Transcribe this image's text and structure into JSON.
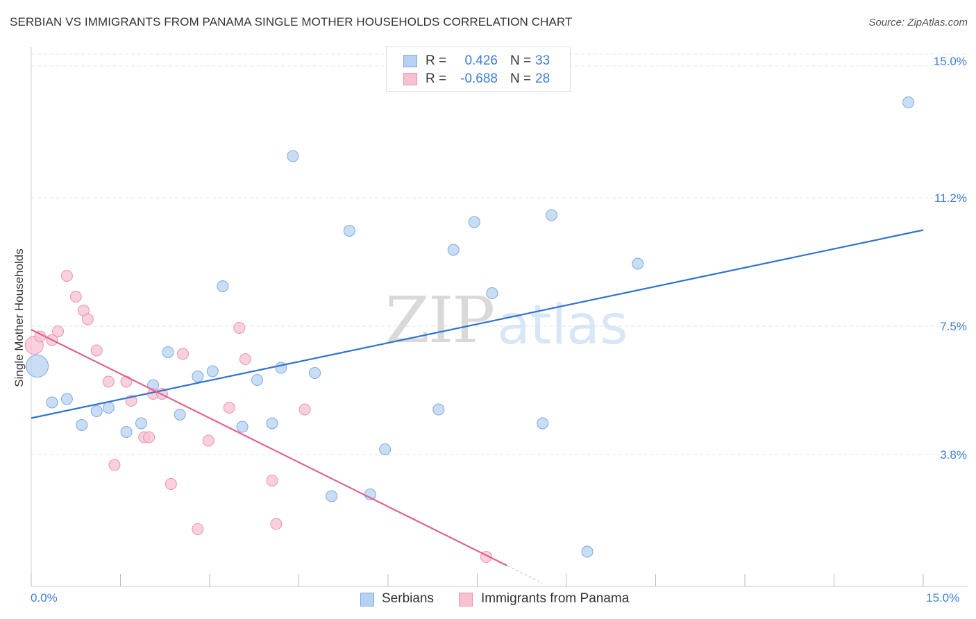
{
  "title": "SERBIAN VS IMMIGRANTS FROM PANAMA SINGLE MOTHER HOUSEHOLDS CORRELATION CHART",
  "source": "Source: ZipAtlas.com",
  "watermark": {
    "zip": "ZIP",
    "atlas": "atlas"
  },
  "colors": {
    "serbians_fill": "#b7d1f2",
    "serbians_stroke": "#7fa9e3",
    "serbians_line": "#2e72cf",
    "panama_fill": "#f7c1d0",
    "panama_stroke": "#ec93ae",
    "panama_line": "#e0608d",
    "value_text": "#3d7dd8",
    "grid": "#e3e3e3"
  },
  "legend_top": {
    "rows": [
      {
        "r_label": "R =",
        "r_value": "0.426",
        "n_label": "N =",
        "n_value": "33"
      },
      {
        "r_label": "R =",
        "r_value": "-0.688",
        "n_label": "N =",
        "n_value": "28"
      }
    ]
  },
  "legend_bottom": {
    "items": [
      "Serbians",
      "Immigrants from Panama"
    ]
  },
  "chart_data": {
    "type": "scatter",
    "title": "SERBIAN VS IMMIGRANTS FROM PANAMA SINGLE MOTHER HOUSEHOLDS CORRELATION CHART",
    "xlabel": "",
    "ylabel": "Single Mother Households",
    "xlim": [
      0,
      15
    ],
    "ylim": [
      0,
      15.3
    ],
    "x_ticks_labeled": [
      "0.0%",
      "15.0%"
    ],
    "y_ticks": [
      {
        "value": 15.0,
        "label": "15.0%"
      },
      {
        "value": 11.2,
        "label": "11.2%"
      },
      {
        "value": 7.5,
        "label": "7.5%"
      },
      {
        "value": 3.8,
        "label": "3.8%"
      }
    ],
    "grid": "horizontal dashed",
    "legend": "bottom-center",
    "series": [
      {
        "name": "Serbians",
        "r": 0.426,
        "n": 33,
        "trend": [
          [
            0.0,
            4.85
          ],
          [
            15.0,
            10.27
          ]
        ],
        "points": [
          [
            0.1,
            6.35,
            "large"
          ],
          [
            0.35,
            5.3
          ],
          [
            0.6,
            5.4
          ],
          [
            0.85,
            4.65
          ],
          [
            1.1,
            5.05
          ],
          [
            1.3,
            5.15
          ],
          [
            1.6,
            4.45
          ],
          [
            1.85,
            4.7
          ],
          [
            2.05,
            5.8
          ],
          [
            2.3,
            6.75
          ],
          [
            2.5,
            4.95
          ],
          [
            2.8,
            6.05
          ],
          [
            3.05,
            6.2
          ],
          [
            3.22,
            8.65
          ],
          [
            3.55,
            4.6
          ],
          [
            3.8,
            5.95
          ],
          [
            4.05,
            4.7
          ],
          [
            4.2,
            6.3
          ],
          [
            4.4,
            12.4
          ],
          [
            4.77,
            6.15
          ],
          [
            5.05,
            2.6
          ],
          [
            5.35,
            10.25
          ],
          [
            5.7,
            2.65
          ],
          [
            5.95,
            3.95
          ],
          [
            6.85,
            5.1
          ],
          [
            7.1,
            9.7
          ],
          [
            7.45,
            10.5
          ],
          [
            7.75,
            8.45
          ],
          [
            8.6,
            4.7
          ],
          [
            8.75,
            10.7
          ],
          [
            9.35,
            1.0
          ],
          [
            10.2,
            9.3
          ],
          [
            14.75,
            13.95
          ]
        ]
      },
      {
        "name": "Immigrants from Panama",
        "r": -0.688,
        "n": 28,
        "trend": [
          [
            0.0,
            7.4
          ],
          [
            8.0,
            0.6
          ]
        ],
        "points": [
          [
            0.05,
            6.95,
            "large"
          ],
          [
            0.15,
            7.2
          ],
          [
            0.35,
            7.1
          ],
          [
            0.45,
            7.35
          ],
          [
            0.6,
            8.95
          ],
          [
            0.75,
            8.35
          ],
          [
            0.88,
            7.95
          ],
          [
            0.95,
            7.7
          ],
          [
            1.1,
            6.8
          ],
          [
            1.3,
            5.9
          ],
          [
            1.4,
            3.5
          ],
          [
            1.6,
            5.9
          ],
          [
            1.68,
            5.35
          ],
          [
            1.9,
            4.3
          ],
          [
            1.98,
            4.3
          ],
          [
            2.05,
            5.55
          ],
          [
            2.2,
            5.55
          ],
          [
            2.35,
            2.95
          ],
          [
            2.55,
            6.7
          ],
          [
            2.8,
            1.65
          ],
          [
            2.98,
            4.2
          ],
          [
            3.33,
            5.15
          ],
          [
            3.5,
            7.45
          ],
          [
            3.6,
            6.55
          ],
          [
            4.05,
            3.05
          ],
          [
            4.12,
            1.8
          ],
          [
            4.6,
            5.1
          ],
          [
            7.65,
            0.85
          ]
        ]
      }
    ]
  }
}
